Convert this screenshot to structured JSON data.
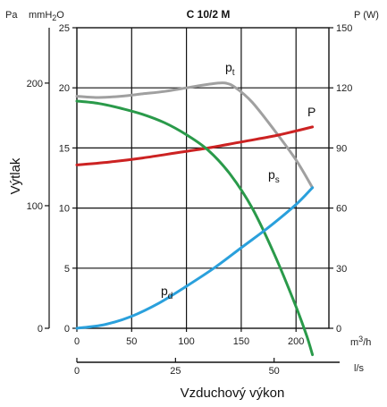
{
  "chart_data": {
    "type": "line",
    "title": "C 10/2 M",
    "xlabel": "Vzduchový výkon",
    "ylabel": "Výtlak",
    "axes": {
      "pa_unit": "Pa",
      "mmh2o_unit_base": "mmH",
      "mmh2o_unit_sub": "2",
      "mmh2o_unit_tail": "O",
      "power_unit": "P (W)",
      "m3h_unit_base": "m",
      "m3h_unit_sup": "3",
      "m3h_unit_tail": "/h",
      "ls_unit": "l/s",
      "x_m3h_ticks": [
        "0",
        "50",
        "100",
        "150",
        "200"
      ],
      "x_m3h_range": [
        0,
        230
      ],
      "x_ls_ticks": [
        "0",
        "25",
        "50"
      ],
      "mmh2o_ticks": [
        "0",
        "5",
        "10",
        "15",
        "20",
        "25"
      ],
      "mmh2o_range": [
        0,
        25
      ],
      "pa_ticks": [
        "0",
        "100",
        "200"
      ],
      "power_ticks": [
        "0",
        "30",
        "60",
        "90",
        "120",
        "150"
      ],
      "power_range": [
        0,
        150
      ]
    },
    "grid": true,
    "series": [
      {
        "name": "p",
        "sub": "t",
        "color": "#a0a0a0",
        "axis": "mmh2o",
        "x": [
          0,
          20,
          40,
          60,
          80,
          100,
          120,
          135,
          145,
          160,
          180,
          200,
          215
        ],
        "y": [
          19.3,
          19.2,
          19.3,
          19.5,
          19.7,
          20.0,
          20.3,
          20.4,
          20.0,
          18.8,
          16.5,
          14.0,
          11.7
        ]
      },
      {
        "name": "P",
        "sub": "",
        "color": "#cc2222",
        "axis": "power",
        "x": [
          0,
          30,
          60,
          90,
          120,
          150,
          180,
          200,
          215
        ],
        "y": [
          81.5,
          83,
          85,
          87.5,
          90,
          93,
          96,
          98.5,
          100.5
        ]
      },
      {
        "name": "p",
        "sub": "s",
        "color": "#2a9a4a",
        "axis": "mmh2o",
        "x": [
          0,
          20,
          40,
          60,
          80,
          100,
          120,
          140,
          160,
          180,
          200,
          210,
          215
        ],
        "y": [
          18.9,
          18.7,
          18.3,
          17.8,
          17.1,
          16.1,
          14.8,
          12.8,
          10.0,
          6.2,
          1.8,
          -0.7,
          -2.2
        ]
      },
      {
        "name": "p",
        "sub": "d",
        "color": "#2aa0dc",
        "axis": "mmh2o",
        "x": [
          0,
          25,
          50,
          75,
          100,
          125,
          150,
          175,
          200,
          215
        ],
        "y": [
          0,
          0.3,
          1.0,
          2.1,
          3.5,
          5.0,
          6.7,
          8.4,
          10.3,
          11.7
        ]
      }
    ]
  }
}
